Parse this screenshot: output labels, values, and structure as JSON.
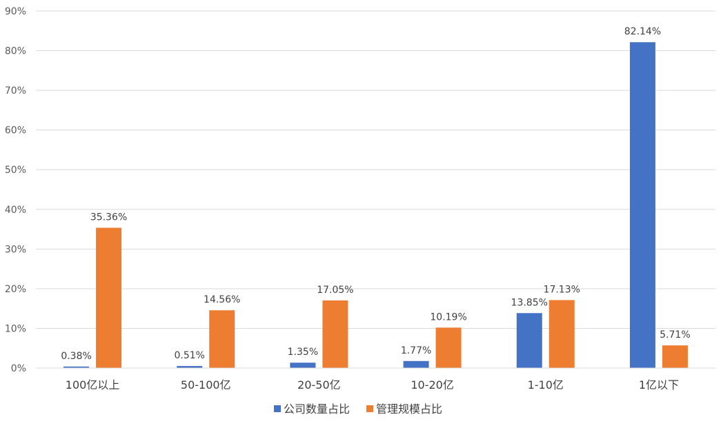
{
  "chart_data": {
    "type": "bar",
    "categories": [
      "100亿以上",
      "50-100亿",
      "20-50亿",
      "10-20亿",
      "1-10亿",
      "1亿以下"
    ],
    "series": [
      {
        "name": "公司数量占比",
        "color": "#4472C4",
        "values": [
          0.38,
          0.51,
          1.35,
          1.77,
          13.85,
          82.14
        ],
        "labels": [
          "0.38%",
          "0.51%",
          "1.35%",
          "1.77%",
          "13.85%",
          "82.14%"
        ]
      },
      {
        "name": "管理规模占比",
        "color": "#ED7D31",
        "values": [
          35.36,
          14.56,
          17.05,
          10.19,
          17.13,
          5.71
        ],
        "labels": [
          "35.36%",
          "14.56%",
          "17.05%",
          "10.19%",
          "17.13%",
          "5.71%"
        ]
      }
    ],
    "ylim": [
      0,
      90
    ],
    "ytick_values": [
      0,
      10,
      20,
      30,
      40,
      50,
      60,
      70,
      80,
      90
    ],
    "ytick_labels": [
      "0%",
      "10%",
      "20%",
      "30%",
      "40%",
      "50%",
      "60%",
      "70%",
      "80%",
      "90%"
    ],
    "grid": true,
    "legend_position": "bottom"
  }
}
